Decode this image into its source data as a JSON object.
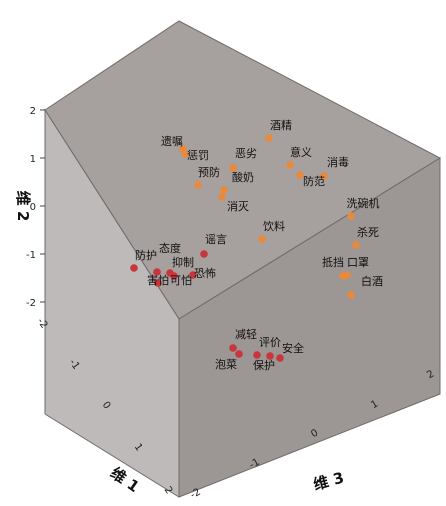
{
  "chart_data": {
    "type": "scatter",
    "projection": "3d",
    "axes": {
      "x": {
        "label": "维 1",
        "ticks": [
          "-2",
          "-1",
          "0",
          "1",
          "2"
        ],
        "range": [
          -2,
          2
        ]
      },
      "y": {
        "label": "维 2",
        "ticks": [
          "2",
          "1",
          "0",
          "-1",
          "-2"
        ],
        "range": [
          -2,
          2
        ]
      },
      "z": {
        "label": "维 3",
        "ticks": [
          "-2",
          "-1",
          "0",
          "1",
          "2"
        ],
        "range": [
          -2,
          2
        ]
      }
    },
    "colors": {
      "cube_top": "#a6a09e",
      "cube_right": "#9c9694",
      "cube_left": "#bdbab9",
      "edge": "#6f6b6a",
      "orange": "#e8893c",
      "red": "#c8353b"
    },
    "orange_points": [
      {
        "label": "遗嘱"
      },
      {
        "label": "惩罚"
      },
      {
        "label": "恶劣"
      },
      {
        "label": "预防"
      },
      {
        "label": "酸奶"
      },
      {
        "label": "消灭"
      },
      {
        "label": "酒精"
      },
      {
        "label": "意义"
      },
      {
        "label": "防范"
      },
      {
        "label": "消毒"
      },
      {
        "label": "饮料"
      },
      {
        "label": "洗碗机"
      },
      {
        "label": "杀死"
      },
      {
        "label": "抵挡"
      },
      {
        "label": "口罩"
      },
      {
        "label": "白酒"
      }
    ],
    "red_points": [
      {
        "label": "态度"
      },
      {
        "label": "防护"
      },
      {
        "label": "抑制"
      },
      {
        "label": "害怕"
      },
      {
        "label": "可怕"
      },
      {
        "label": "谣言"
      },
      {
        "label": "恐怖"
      },
      {
        "label": "减轻"
      },
      {
        "label": "泡菜"
      },
      {
        "label": "评价"
      },
      {
        "label": "保护"
      },
      {
        "label": "安全"
      }
    ]
  }
}
